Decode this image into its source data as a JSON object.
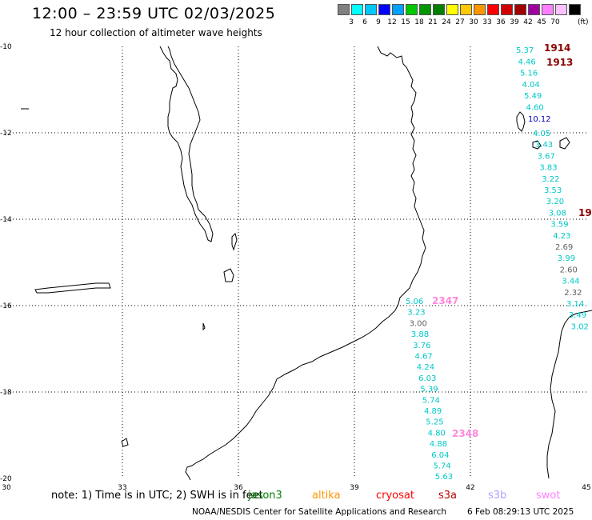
{
  "title": "12:00 – 23:59 UTC 02/03/2025",
  "subtitle": "12 hour collection of altimeter wave heights",
  "legend": {
    "unit": "(ft)",
    "colors": [
      "#808080",
      "#00ffff",
      "#00c8ff",
      "#0000ff",
      "#00a0ff",
      "#00c800",
      "#009600",
      "#008000",
      "#ffff00",
      "#ffc800",
      "#ff9600",
      "#ff0000",
      "#d20000",
      "#a00000",
      "#a000a0",
      "#ff80ff",
      "#ffc0ff",
      "#000000"
    ],
    "labels": [
      "3",
      "6",
      "9",
      "12",
      "15",
      "18",
      "21",
      "24",
      "27",
      "30",
      "33",
      "36",
      "39",
      "42",
      "45",
      "70"
    ]
  },
  "axes": {
    "lon_labels": [
      "30",
      "33",
      "36",
      "39",
      "42",
      "45"
    ],
    "lat_labels": [
      "-10",
      "-12",
      "-14",
      "-16",
      "-18",
      "-20"
    ]
  },
  "tracks": [
    {
      "label": "1914",
      "color": "#8b0000"
    },
    {
      "label": "1913",
      "color": "#8b0000"
    },
    {
      "label": "19",
      "color": "#8b0000"
    },
    {
      "label": "2347",
      "color": "#ff88dd"
    },
    {
      "label": "2348",
      "color": "#ff88dd"
    }
  ],
  "wave_heights": {
    "track_east_top": [
      {
        "v": "5.37",
        "c": "#00c8c8"
      },
      {
        "v": "4.46",
        "c": "#00c8c8"
      },
      {
        "v": "5.16",
        "c": "#00c8c8"
      },
      {
        "v": "4.04",
        "c": "#00c8c8"
      },
      {
        "v": "5.49",
        "c": "#00c8c8"
      },
      {
        "v": "4.60",
        "c": "#00c8c8"
      },
      {
        "v": "10.12",
        "c": "#0000c0"
      }
    ],
    "track_east_mid": [
      {
        "v": "4.05",
        "c": "#00c8c8"
      },
      {
        "v": "3.43",
        "c": "#00c8c8"
      },
      {
        "v": "3.67",
        "c": "#00c8c8"
      },
      {
        "v": "3.83",
        "c": "#00c8c8"
      },
      {
        "v": "3.22",
        "c": "#00c8c8"
      },
      {
        "v": "3.53",
        "c": "#00c8c8"
      },
      {
        "v": "3.20",
        "c": "#00c8c8"
      },
      {
        "v": "3.08",
        "c": "#00c8c8"
      },
      {
        "v": "3.59",
        "c": "#00c8c8"
      },
      {
        "v": "4.23",
        "c": "#00c8c8"
      },
      {
        "v": "2.69",
        "c": "#606060"
      },
      {
        "v": "3.99",
        "c": "#00c8c8"
      },
      {
        "v": "2.60",
        "c": "#606060"
      },
      {
        "v": "3.44",
        "c": "#00c8c8"
      },
      {
        "v": "2.32",
        "c": "#606060"
      },
      {
        "v": "3.14",
        "c": "#00c8c8"
      },
      {
        "v": "3.49",
        "c": "#00c8c8"
      },
      {
        "v": "3.02",
        "c": "#00c8c8"
      }
    ],
    "track_south": [
      {
        "v": "5.06",
        "c": "#00c8c8"
      },
      {
        "v": "3.23",
        "c": "#00c8c8"
      },
      {
        "v": "3.00",
        "c": "#606060"
      },
      {
        "v": "3.88",
        "c": "#00c8c8"
      },
      {
        "v": "3.76",
        "c": "#00c8c8"
      },
      {
        "v": "4.67",
        "c": "#00c8c8"
      },
      {
        "v": "4.24",
        "c": "#00c8c8"
      },
      {
        "v": "6.03",
        "c": "#00c8c8"
      },
      {
        "v": "5.39",
        "c": "#00c8c8"
      },
      {
        "v": "5.74",
        "c": "#00c8c8"
      },
      {
        "v": "4.89",
        "c": "#00c8c8"
      },
      {
        "v": "5.25",
        "c": "#00c8c8"
      },
      {
        "v": "4.80",
        "c": "#00c8c8"
      },
      {
        "v": "4.88",
        "c": "#00c8c8"
      },
      {
        "v": "6.04",
        "c": "#00c8c8"
      },
      {
        "v": "5.74",
        "c": "#00c8c8"
      },
      {
        "v": "5.63",
        "c": "#00c8c8"
      }
    ]
  },
  "note": "note:  1) Time is in UTC;  2) SWH is in feet",
  "satellites": [
    {
      "name": "jason3",
      "color": "#008000"
    },
    {
      "name": "altika",
      "color": "#ff9600"
    },
    {
      "name": "cryosat",
      "color": "#ff0000"
    },
    {
      "name": "s3a",
      "color": "#c00000"
    },
    {
      "name": "s3b",
      "color": "#b0a0ff"
    },
    {
      "name": "swot",
      "color": "#ff80ff"
    }
  ],
  "footer": "NOAA/NESDIS Center for Satellite Applications and Research",
  "generated": "6 Feb 08:29:13 UTC 2025"
}
